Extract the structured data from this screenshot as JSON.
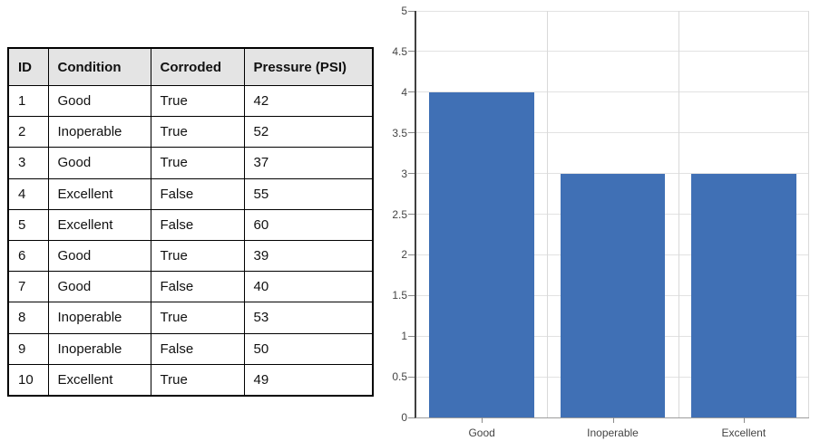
{
  "table": {
    "columns": [
      "ID",
      "Condition",
      "Corroded",
      "Pressure (PSI)"
    ],
    "rows": [
      [
        "1",
        "Good",
        "True",
        "42"
      ],
      [
        "2",
        "Inoperable",
        "True",
        "52"
      ],
      [
        "3",
        "Good",
        "True",
        "37"
      ],
      [
        "4",
        "Excellent",
        "False",
        "55"
      ],
      [
        "5",
        "Excellent",
        "False",
        "60"
      ],
      [
        "6",
        "Good",
        "True",
        "39"
      ],
      [
        "7",
        "Good",
        "False",
        "40"
      ],
      [
        "8",
        "Inoperable",
        "True",
        "53"
      ],
      [
        "9",
        "Inoperable",
        "False",
        "50"
      ],
      [
        "10",
        "Excellent",
        "True",
        "49"
      ]
    ]
  },
  "chart_data": {
    "type": "bar",
    "categories": [
      "Good",
      "Inoperable",
      "Excellent"
    ],
    "values": [
      4,
      3,
      3
    ],
    "title": "",
    "xlabel": "",
    "ylabel": "",
    "ylim": [
      0,
      5
    ],
    "ytick_step": 0.5,
    "yticks": [
      "0",
      "0.5",
      "1",
      "1.5",
      "2",
      "2.5",
      "3",
      "3.5",
      "4",
      "4.5",
      "5"
    ],
    "grid": true,
    "legend_position": "none",
    "bar_width_fraction": 0.8
  },
  "colors": {
    "bar": "#4070B5",
    "gridline": "#E2E2E2",
    "vgridline": "#D9D9D9",
    "axis": "#404040",
    "baseline": "#9D9D9D",
    "tick": "#8A8A8A",
    "table_border": "#000000",
    "header_bg": "#E4E4E4",
    "text": "#111111",
    "chart_text": "#444444"
  }
}
